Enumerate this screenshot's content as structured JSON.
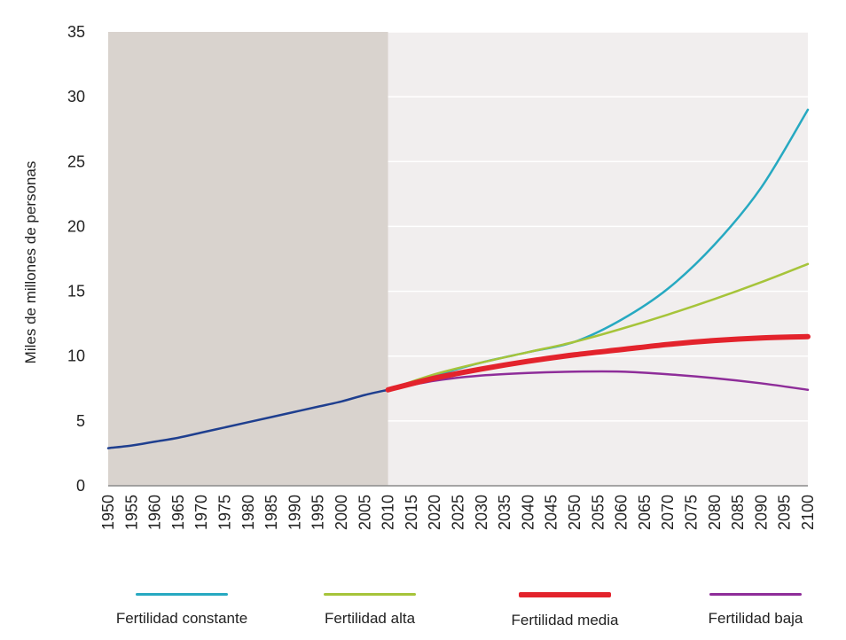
{
  "chart_data": {
    "type": "line",
    "title": "",
    "xlabel": "",
    "ylabel": "Miles de millones de personas",
    "xlim": [
      1950,
      2100
    ],
    "ylim": [
      0,
      35
    ],
    "x_ticks": [
      1950,
      1955,
      1960,
      1965,
      1970,
      1975,
      1980,
      1985,
      1990,
      1995,
      2000,
      2005,
      2010,
      2015,
      2020,
      2025,
      2030,
      2035,
      2040,
      2045,
      2050,
      2055,
      2060,
      2065,
      2070,
      2075,
      2080,
      2085,
      2090,
      2095,
      2100
    ],
    "y_ticks": [
      0,
      5,
      10,
      15,
      20,
      25,
      30,
      35
    ],
    "historical_range": [
      1950,
      2010
    ],
    "grid": "horizontal",
    "legend_position": "bottom",
    "historical": {
      "color": "#1f3f8f",
      "x": [
        1950,
        1955,
        1960,
        1965,
        1970,
        1975,
        1980,
        1985,
        1990,
        1995,
        2000,
        2005,
        2010
      ],
      "values": [
        2.9,
        3.1,
        3.4,
        3.7,
        4.1,
        4.5,
        4.9,
        5.3,
        5.7,
        6.1,
        6.5,
        7.0,
        7.4
      ]
    },
    "series": [
      {
        "name": "Fertilidad constante",
        "color": "#27a9c1",
        "width": 2.5,
        "x": [
          2010,
          2020,
          2030,
          2040,
          2050,
          2060,
          2070,
          2080,
          2090,
          2100
        ],
        "values": [
          7.4,
          8.5,
          9.5,
          10.3,
          11.1,
          12.8,
          15.2,
          18.6,
          23.0,
          29.0
        ]
      },
      {
        "name": "Fertilidad alta",
        "color": "#a6c43a",
        "width": 2.5,
        "x": [
          2010,
          2020,
          2030,
          2040,
          2050,
          2060,
          2070,
          2080,
          2090,
          2100
        ],
        "values": [
          7.4,
          8.6,
          9.5,
          10.3,
          11.1,
          12.1,
          13.2,
          14.4,
          15.7,
          17.1
        ]
      },
      {
        "name": "Fertilidad media",
        "color": "#e3232c",
        "width": 6,
        "x": [
          2010,
          2020,
          2030,
          2040,
          2050,
          2060,
          2070,
          2080,
          2090,
          2100
        ],
        "values": [
          7.4,
          8.3,
          9.0,
          9.6,
          10.1,
          10.5,
          10.9,
          11.2,
          11.4,
          11.5
        ]
      },
      {
        "name": "Fertilidad baja",
        "color": "#8e2d99",
        "width": 2.5,
        "x": [
          2010,
          2020,
          2030,
          2040,
          2050,
          2060,
          2070,
          2080,
          2090,
          2100
        ],
        "values": [
          7.4,
          8.1,
          8.5,
          8.7,
          8.8,
          8.8,
          8.6,
          8.3,
          7.9,
          7.4
        ]
      }
    ]
  }
}
